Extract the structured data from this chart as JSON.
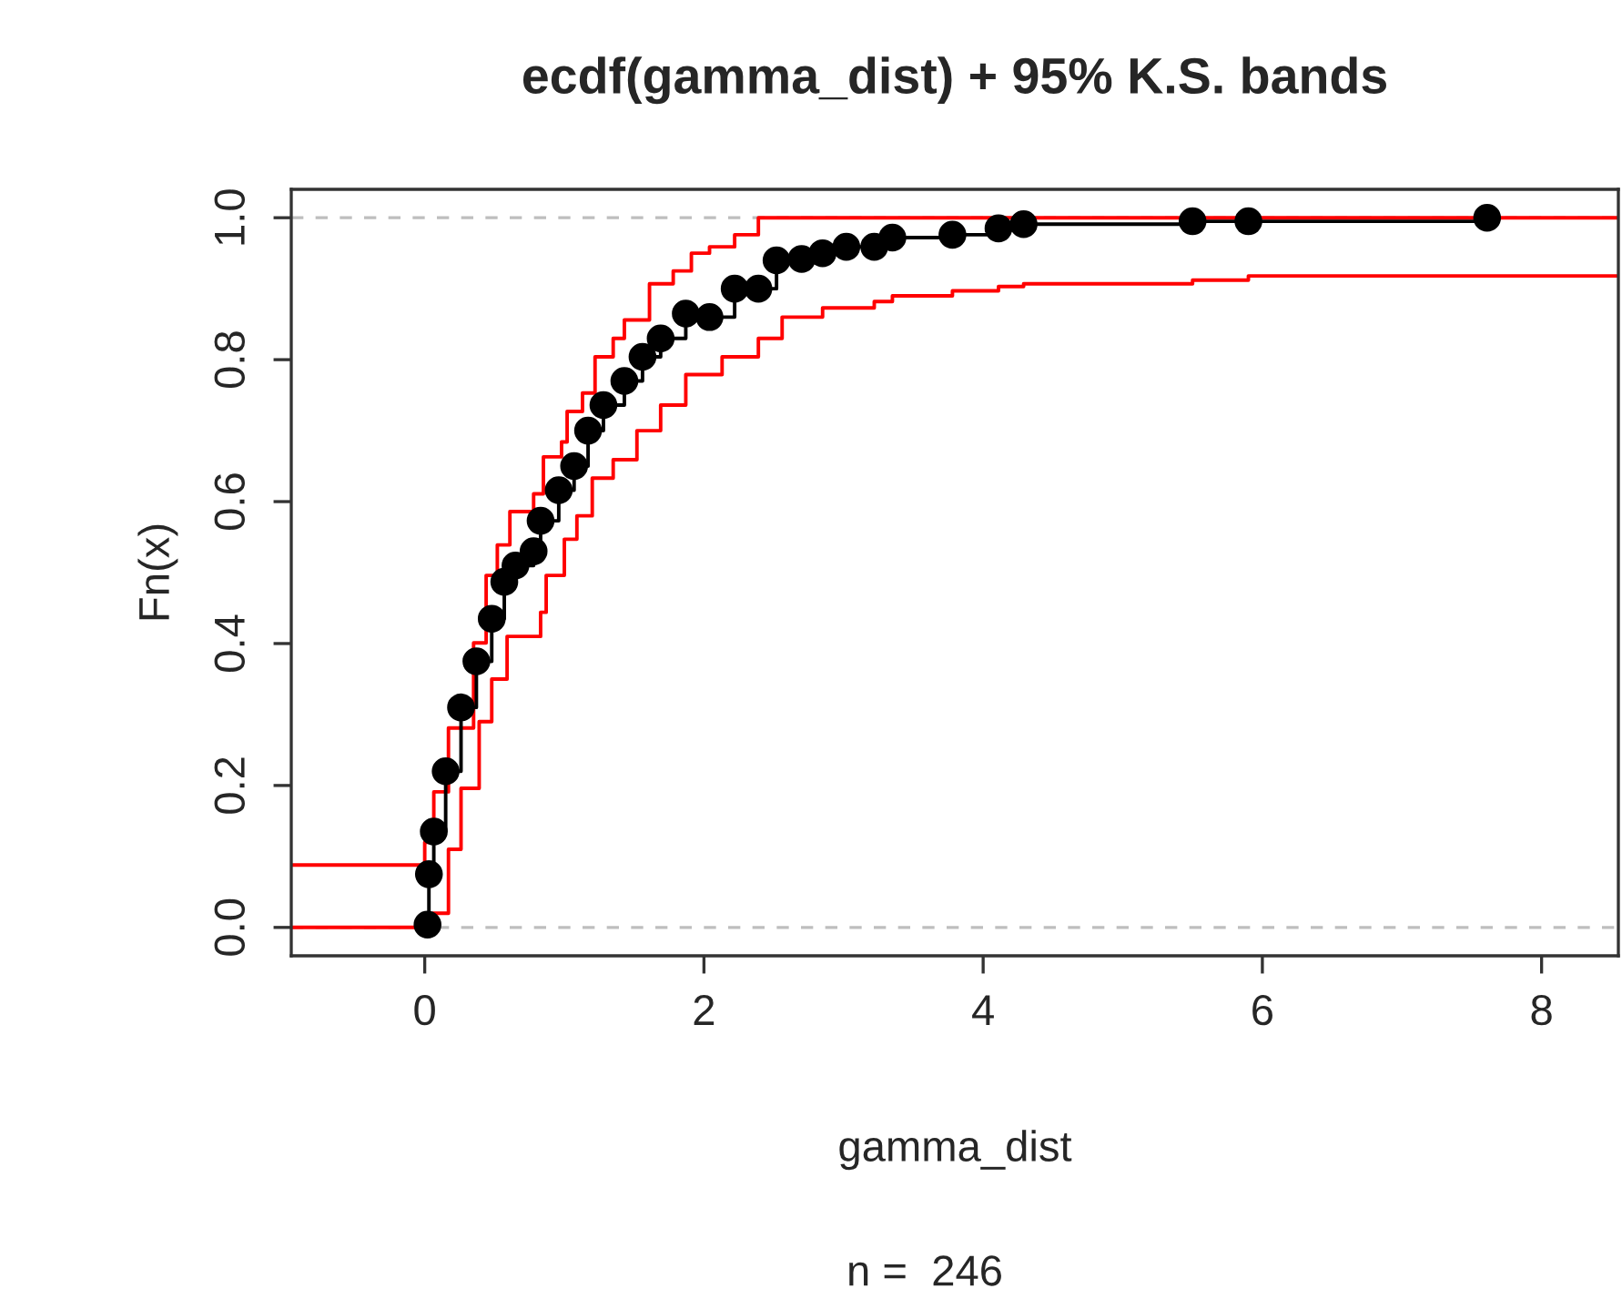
{
  "chart_data": {
    "type": "step",
    "title": "ecdf(gamma_dist) + 95% K.S. bands",
    "xlabel": "gamma_dist",
    "ylabel": "Fn(x)",
    "annotations": [
      "n =  246"
    ],
    "xlim": [
      -0.956,
      8.55
    ],
    "ylim": [
      -0.04,
      1.04
    ],
    "xticks": [
      0,
      2,
      4,
      6,
      8
    ],
    "yticks": [
      {
        "value": 0,
        "label": "0.0"
      },
      {
        "value": 0.2,
        "label": "0.2"
      },
      {
        "value": 0.4,
        "label": "0.4"
      },
      {
        "value": 0.6,
        "label": "0.6"
      },
      {
        "value": 0.8,
        "label": "0.8"
      },
      {
        "value": 1,
        "label": "1.0"
      }
    ],
    "grid": false,
    "legend": false,
    "ref_lines": [
      {
        "axis": "y",
        "value": 0,
        "color": "#bebebe",
        "line_style": "dashed"
      },
      {
        "axis": "y",
        "value": 1,
        "color": "#bebebe",
        "line_style": "dashed"
      }
    ],
    "series": [
      {
        "color": "#ff0000",
        "marker": "none",
        "x": [
          -0.956,
          0.0,
          0.065,
          0.17,
          0.35,
          0.44,
          0.52,
          0.61,
          0.78,
          0.85,
          0.98,
          1.02,
          1.13,
          1.22,
          1.35,
          1.43,
          1.61,
          1.78,
          1.91,
          2.04,
          2.22,
          2.39,
          8.55
        ],
        "values": [
          0.088,
          0.12,
          0.191,
          0.281,
          0.401,
          0.496,
          0.539,
          0.586,
          0.611,
          0.663,
          0.684,
          0.727,
          0.753,
          0.804,
          0.83,
          0.856,
          0.907,
          0.925,
          0.95,
          0.959,
          0.976,
          1.0,
          1.0
        ]
      },
      {
        "color": "#ff0000",
        "marker": "none",
        "x": [
          -0.956,
          0.06,
          0.17,
          0.26,
          0.39,
          0.48,
          0.59,
          0.83,
          0.87,
          1.0,
          1.09,
          1.2,
          1.35,
          1.52,
          1.69,
          1.87,
          2.13,
          2.39,
          2.56,
          2.85,
          3.22,
          3.35,
          3.78,
          4.11,
          4.29,
          5.5,
          5.9,
          8.55
        ],
        "values": [
          0,
          0.02,
          0.11,
          0.196,
          0.29,
          0.35,
          0.41,
          0.444,
          0.496,
          0.547,
          0.58,
          0.633,
          0.659,
          0.7,
          0.736,
          0.779,
          0.804,
          0.83,
          0.86,
          0.873,
          0.882,
          0.89,
          0.897,
          0.903,
          0.907,
          0.912,
          0.918,
          0.918
        ]
      },
      {
        "color": "#000000",
        "marker": "circle",
        "x": [
          0.02,
          0.03,
          0.065,
          0.15,
          0.26,
          0.37,
          0.48,
          0.57,
          0.65,
          0.78,
          0.83,
          0.96,
          1.07,
          1.17,
          1.28,
          1.43,
          1.56,
          1.69,
          1.87,
          2.04,
          2.22,
          2.39,
          2.52,
          2.7,
          2.85,
          3.02,
          3.22,
          3.35,
          3.78,
          4.11,
          4.29,
          5.5,
          5.9,
          7.61
        ],
        "values": [
          0.004,
          0.075,
          0.135,
          0.22,
          0.31,
          0.375,
          0.435,
          0.487,
          0.51,
          0.53,
          0.573,
          0.616,
          0.65,
          0.7,
          0.736,
          0.77,
          0.804,
          0.83,
          0.865,
          0.86,
          0.9,
          0.9,
          0.94,
          0.942,
          0.95,
          0.959,
          0.959,
          0.972,
          0.976,
          0.985,
          0.991,
          0.995,
          0.995,
          1.0
        ]
      }
    ]
  }
}
